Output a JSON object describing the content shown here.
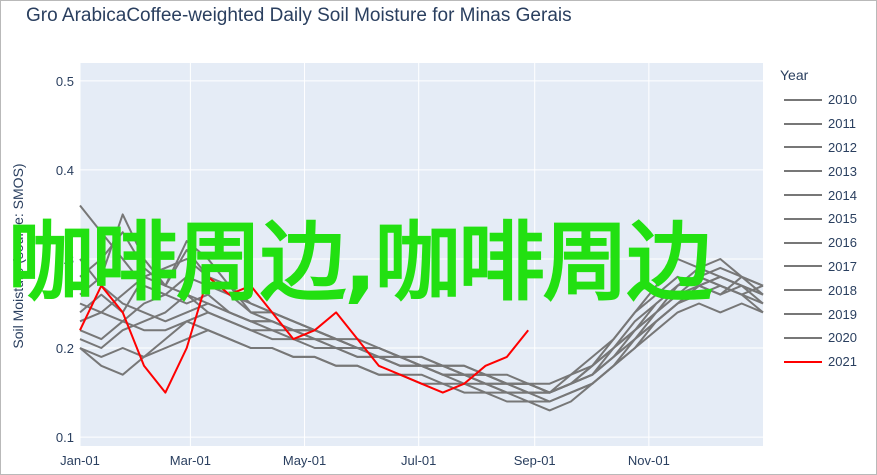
{
  "title": "Gro ArabicaCoffee-weighted Daily Soil Moisture for Minas Gerais",
  "watermark": "咖啡周边,咖啡周边",
  "chart_data": {
    "type": "line",
    "title": "Gro ArabicaCoffee-weighted Daily Soil Moisture for Minas Gerais",
    "xlabel": "",
    "ylabel": "Soil Moisture (source: SMOS)",
    "x_ticks": [
      "Jan-01",
      "Mar-01",
      "May-01",
      "Jul-01",
      "Sep-01",
      "Nov-01"
    ],
    "y_ticks": [
      0.1,
      0.2,
      0.3,
      0.4,
      0.5
    ],
    "xlim_days": [
      0,
      365
    ],
    "ylim": [
      0.09,
      0.52
    ],
    "legend_title": "Year",
    "legend_position": "right",
    "colors": {
      "past_years": "#777777",
      "current_year": "#ff0000",
      "plot_bg": "#e5ecf6",
      "grid": "#ffffff"
    },
    "series": [
      {
        "name": "2010",
        "values": [
          0.23,
          0.24,
          0.26,
          0.28,
          0.29,
          0.3,
          0.28,
          0.27,
          0.25,
          0.24,
          0.23,
          0.22,
          0.21,
          0.2,
          0.19,
          0.19,
          0.18,
          0.18,
          0.17,
          0.17,
          0.16,
          0.16,
          0.15,
          0.16,
          0.17,
          0.19,
          0.21,
          0.23,
          0.25,
          0.26,
          0.27,
          0.26,
          0.27
        ]
      },
      {
        "name": "2011",
        "values": [
          0.26,
          0.28,
          0.35,
          0.3,
          0.27,
          0.31,
          0.28,
          0.26,
          0.24,
          0.24,
          0.23,
          0.22,
          0.21,
          0.2,
          0.19,
          0.19,
          0.18,
          0.17,
          0.17,
          0.16,
          0.16,
          0.15,
          0.15,
          0.16,
          0.18,
          0.2,
          0.22,
          0.24,
          0.26,
          0.27,
          0.26,
          0.27,
          0.25
        ]
      },
      {
        "name": "2012",
        "values": [
          0.3,
          0.27,
          0.25,
          0.24,
          0.23,
          0.24,
          0.25,
          0.24,
          0.23,
          0.22,
          0.22,
          0.21,
          0.2,
          0.2,
          0.19,
          0.18,
          0.18,
          0.17,
          0.17,
          0.16,
          0.15,
          0.15,
          0.14,
          0.15,
          0.16,
          0.18,
          0.2,
          0.23,
          0.25,
          0.27,
          0.28,
          0.27,
          0.26
        ]
      },
      {
        "name": "2013",
        "values": [
          0.24,
          0.26,
          0.24,
          0.28,
          0.27,
          0.32,
          0.3,
          0.27,
          0.24,
          0.23,
          0.22,
          0.22,
          0.21,
          0.2,
          0.2,
          0.19,
          0.18,
          0.18,
          0.17,
          0.17,
          0.16,
          0.16,
          0.15,
          0.17,
          0.19,
          0.21,
          0.24,
          0.26,
          0.28,
          0.27,
          0.26,
          0.28,
          0.26
        ]
      },
      {
        "name": "2014",
        "values": [
          0.2,
          0.19,
          0.2,
          0.19,
          0.2,
          0.21,
          0.22,
          0.21,
          0.2,
          0.2,
          0.19,
          0.19,
          0.18,
          0.18,
          0.17,
          0.17,
          0.17,
          0.16,
          0.16,
          0.15,
          0.15,
          0.14,
          0.14,
          0.15,
          0.16,
          0.18,
          0.2,
          0.22,
          0.24,
          0.25,
          0.24,
          0.25,
          0.24
        ]
      },
      {
        "name": "2015",
        "values": [
          0.21,
          0.2,
          0.22,
          0.23,
          0.24,
          0.26,
          0.24,
          0.23,
          0.22,
          0.21,
          0.21,
          0.2,
          0.2,
          0.19,
          0.19,
          0.18,
          0.18,
          0.17,
          0.16,
          0.16,
          0.15,
          0.15,
          0.15,
          0.16,
          0.18,
          0.2,
          0.23,
          0.25,
          0.27,
          0.28,
          0.29,
          0.28,
          0.27
        ]
      },
      {
        "name": "2016",
        "values": [
          0.36,
          0.33,
          0.3,
          0.27,
          0.26,
          0.25,
          0.26,
          0.24,
          0.23,
          0.23,
          0.22,
          0.22,
          0.21,
          0.2,
          0.2,
          0.19,
          0.19,
          0.18,
          0.18,
          0.17,
          0.17,
          0.16,
          0.16,
          0.17,
          0.18,
          0.21,
          0.24,
          0.27,
          0.3,
          0.29,
          0.28,
          0.27,
          0.26
        ]
      },
      {
        "name": "2017",
        "values": [
          0.25,
          0.24,
          0.23,
          0.22,
          0.22,
          0.23,
          0.24,
          0.23,
          0.22,
          0.22,
          0.21,
          0.21,
          0.2,
          0.19,
          0.19,
          0.18,
          0.18,
          0.17,
          0.17,
          0.16,
          0.16,
          0.15,
          0.15,
          0.16,
          0.17,
          0.19,
          0.22,
          0.24,
          0.27,
          0.29,
          0.3,
          0.28,
          0.27
        ]
      },
      {
        "name": "2018",
        "values": [
          0.22,
          0.21,
          0.23,
          0.25,
          0.26,
          0.28,
          0.27,
          0.26,
          0.25,
          0.24,
          0.23,
          0.22,
          0.21,
          0.21,
          0.2,
          0.19,
          0.19,
          0.18,
          0.18,
          0.17,
          0.16,
          0.16,
          0.15,
          0.16,
          0.17,
          0.19,
          0.21,
          0.24,
          0.26,
          0.28,
          0.27,
          0.26,
          0.25
        ]
      },
      {
        "name": "2019",
        "values": [
          0.2,
          0.18,
          0.17,
          0.19,
          0.21,
          0.23,
          0.22,
          0.21,
          0.2,
          0.2,
          0.19,
          0.19,
          0.18,
          0.18,
          0.17,
          0.17,
          0.16,
          0.16,
          0.15,
          0.15,
          0.14,
          0.14,
          0.13,
          0.14,
          0.16,
          0.18,
          0.21,
          0.23,
          0.25,
          0.27,
          0.28,
          0.27,
          0.26
        ]
      },
      {
        "name": "2020",
        "values": [
          0.28,
          0.3,
          0.33,
          0.29,
          0.27,
          0.26,
          0.25,
          0.24,
          0.23,
          0.23,
          0.22,
          0.21,
          0.21,
          0.2,
          0.2,
          0.19,
          0.18,
          0.18,
          0.17,
          0.17,
          0.16,
          0.16,
          0.15,
          0.16,
          0.17,
          0.2,
          0.22,
          0.25,
          0.27,
          0.28,
          0.27,
          0.26,
          0.24
        ]
      },
      {
        "name": "2021",
        "values": [
          0.22,
          0.27,
          0.24,
          0.18,
          0.15,
          0.2,
          0.28,
          0.26,
          0.27,
          0.24,
          0.21,
          0.22,
          0.24,
          0.21,
          0.18,
          0.17,
          0.16,
          0.15,
          0.16,
          0.18,
          0.19,
          0.22
        ]
      }
    ]
  }
}
